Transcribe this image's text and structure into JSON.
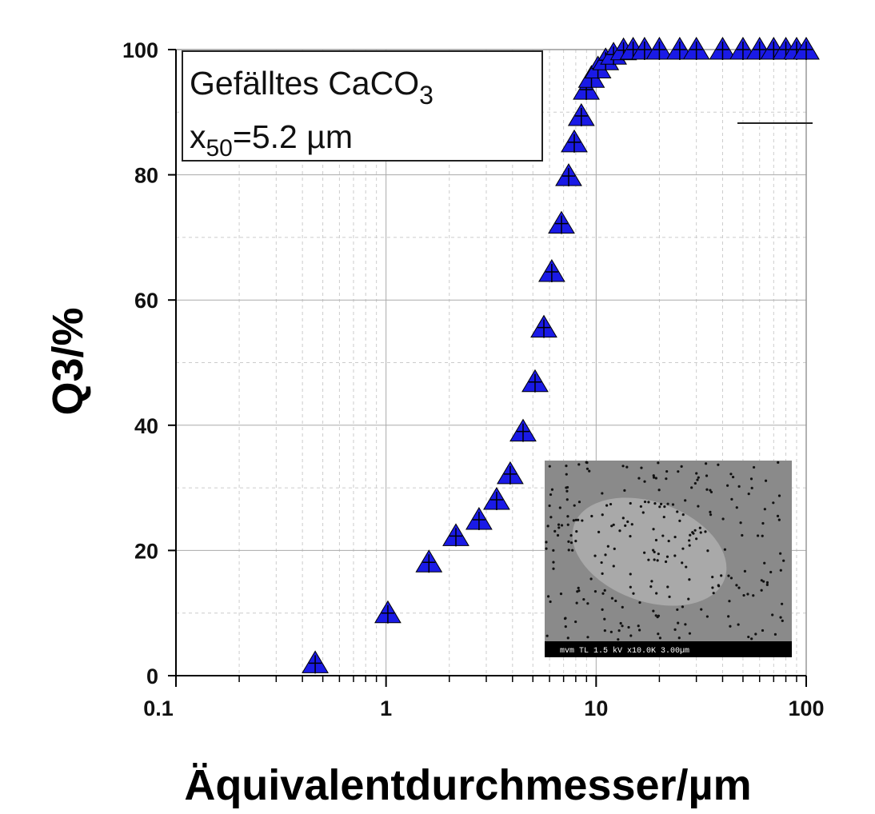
{
  "chart_data": {
    "type": "scatter",
    "xlabel": "Äquivalentdurchmesser/µm",
    "ylabel": "Q3/%",
    "xscale": "log",
    "xlim": [
      0.1,
      100
    ],
    "xticks": [
      0.1,
      1,
      10,
      100
    ],
    "ylim": [
      0,
      100
    ],
    "yticks": [
      0,
      20,
      40,
      60,
      80,
      100
    ],
    "grid": true,
    "annotation": {
      "line1": "Gefälltes CaCO",
      "line1_sub": "3",
      "line2_x": "x",
      "line2_sub": "50",
      "line2_rest": "=5.2 µm"
    },
    "inset_caption": "mvm TL 1.5 kV x10.0K 3.00µm",
    "series": [
      {
        "color": "#1a1ae6",
        "x": [
          0.46,
          1.02,
          1.6,
          2.15,
          2.77,
          3.36,
          3.9,
          4.49,
          5.12,
          5.64,
          6.15,
          6.84,
          7.4,
          7.87,
          8.5,
          8.98,
          9.5,
          10.2,
          11.1,
          12.1,
          13.5,
          15,
          17,
          20,
          25,
          30,
          40,
          50,
          60,
          70,
          80,
          90,
          100
        ],
        "values": [
          2,
          10,
          18.1,
          22.3,
          24.9,
          28.1,
          32.2,
          39,
          46.9,
          55.6,
          64.5,
          72.2,
          79.8,
          85.2,
          89.4,
          93.6,
          95.5,
          97,
          98.3,
          99.2,
          99.9,
          100,
          100,
          100,
          100,
          100,
          100,
          100,
          100,
          100,
          100,
          100,
          100
        ]
      }
    ]
  }
}
